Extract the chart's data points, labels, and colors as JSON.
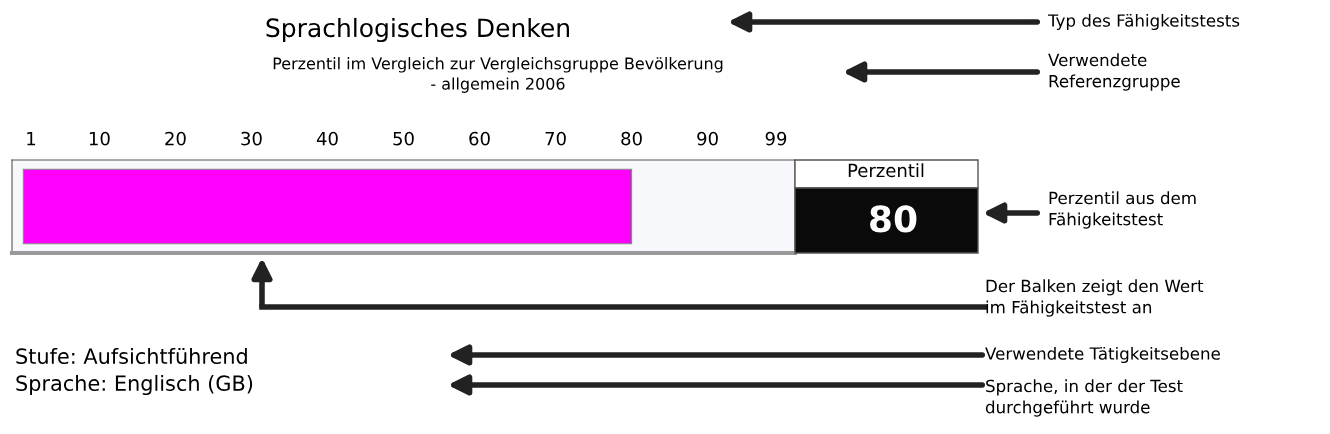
{
  "chart_data": {
    "type": "bar",
    "orientation": "horizontal",
    "title": "Sprachlogisches Denken",
    "subtitle": "Perzentil im Vergleich zur Vergleichsgruppe Bevölkerung\n- allgemein 2006",
    "categories": [
      null
    ],
    "values": [
      80
    ],
    "color": "#ff00ff",
    "xlim": [
      -1.5,
      101.5
    ],
    "xticks": [
      1,
      10,
      20,
      30,
      40,
      50,
      60,
      70,
      80,
      90,
      99
    ],
    "grid": false,
    "legend": false,
    "annotations": [
      "Typ des Fähigkeitstests",
      "Verwendete\nReferenzgruppe",
      "Perzentil aus dem\nFähigkeitstest",
      "Der Balken zeigt den Wert\nim Fähigkeitstest an",
      "Verwendete Tätigkeitsebene",
      "Sprache, in der der Test\ndurchgeführt wurde",
      "Perzentil",
      "Stufe: Aufsichtführend",
      "Sprache: Englisch (GB)",
      "80"
    ]
  }
}
